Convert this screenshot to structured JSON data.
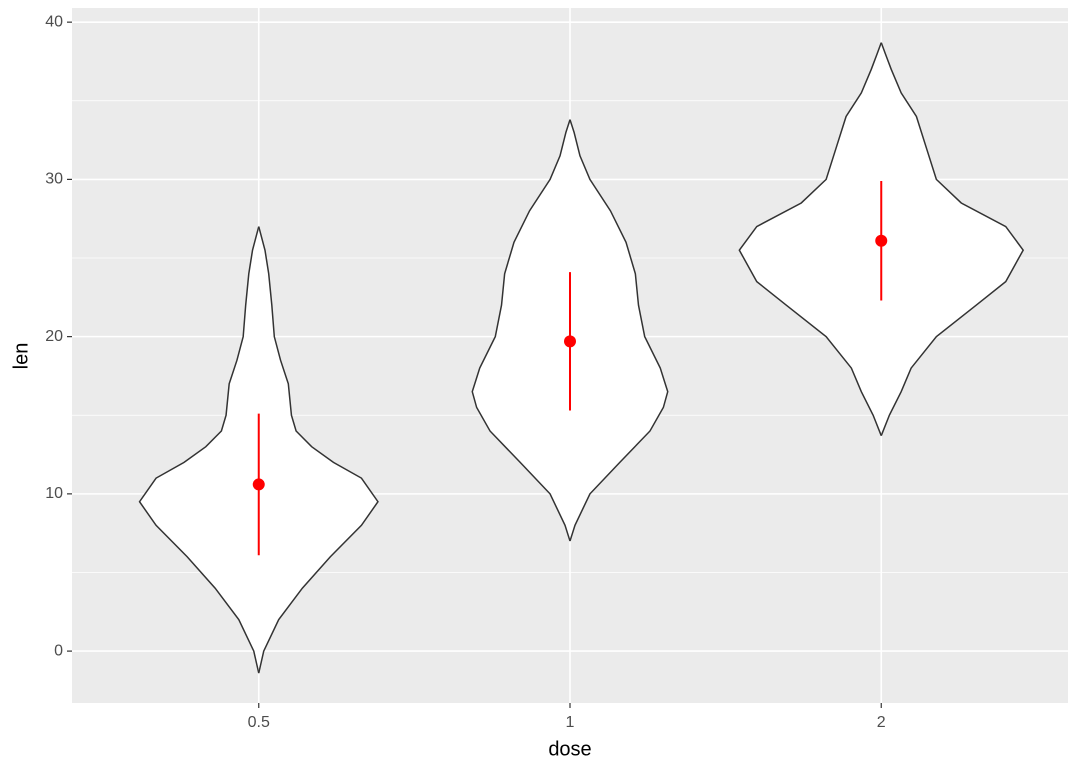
{
  "chart_data": {
    "type": "violin",
    "x_label": "dose",
    "y_label": "len",
    "categories": [
      "0.5",
      "1",
      "2"
    ],
    "ylim": [
      -3.3,
      40.9
    ],
    "yticks": [
      0,
      10,
      20,
      30,
      40
    ],
    "minor_yticks": [
      5,
      15,
      25,
      35
    ],
    "grid": true,
    "violin_fill": "#ffffff",
    "violin_stroke": "#333333",
    "violins": [
      {
        "len": [
          -1.4,
          0,
          2,
          4,
          6,
          8,
          9.5,
          11,
          12,
          13,
          14,
          15,
          17,
          18.5,
          20,
          22,
          24,
          25.5,
          27
        ],
        "width": [
          0,
          0.016,
          0.064,
          0.14,
          0.23,
          0.33,
          0.383,
          0.33,
          0.24,
          0.17,
          0.12,
          0.105,
          0.095,
          0.07,
          0.05,
          0.042,
          0.032,
          0.02,
          0
        ]
      },
      {
        "len": [
          7,
          8,
          10,
          12,
          14,
          15.5,
          16.5,
          18,
          20,
          22,
          24,
          26,
          28,
          30,
          31.5,
          33,
          33.8
        ],
        "width": [
          0,
          0.016,
          0.064,
          0.16,
          0.257,
          0.3,
          0.314,
          0.29,
          0.24,
          0.22,
          0.21,
          0.18,
          0.13,
          0.064,
          0.032,
          0.013,
          0
        ]
      },
      {
        "len": [
          13.7,
          15,
          16.5,
          18,
          20,
          22,
          23.5,
          25.5,
          27,
          28.5,
          30,
          32,
          34,
          35.5,
          37,
          38,
          38.7
        ],
        "width": [
          0,
          0.026,
          0.064,
          0.096,
          0.177,
          0.305,
          0.4,
          0.456,
          0.4,
          0.257,
          0.177,
          0.145,
          0.113,
          0.064,
          0.032,
          0.013,
          0
        ]
      }
    ],
    "summary": {
      "color": "#ff0000",
      "mean": [
        10.6,
        19.7,
        26.1
      ],
      "sd": [
        4.5,
        4.4,
        3.8
      ]
    }
  }
}
